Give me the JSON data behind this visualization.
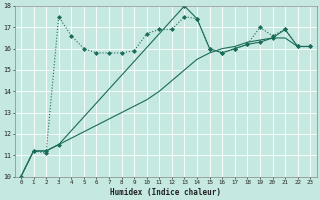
{
  "xlabel": "Humidex (Indice chaleur)",
  "bg_color": "#c5e8e0",
  "grid_color": "#a0d0c8",
  "line_color": "#1a6b5a",
  "xlim": [
    -0.5,
    23.5
  ],
  "ylim": [
    10,
    18
  ],
  "xtick_labels": [
    "0",
    "1",
    "2",
    "3",
    "4",
    "5",
    "6",
    "7",
    "8",
    "9",
    "10",
    "11",
    "12",
    "13",
    "14",
    "15",
    "16",
    "17",
    "18",
    "19",
    "20",
    "21",
    "22",
    "23"
  ],
  "ytick_labels": [
    "10",
    "11",
    "12",
    "13",
    "14",
    "15",
    "16",
    "17",
    "18"
  ],
  "line1_x": [
    0,
    1,
    2,
    3,
    4,
    5,
    6,
    7,
    8,
    9,
    10,
    11,
    12,
    13,
    14,
    15,
    16,
    17,
    18,
    19,
    20,
    21,
    22,
    23
  ],
  "line1_y": [
    10.0,
    11.2,
    11.1,
    17.5,
    16.6,
    16.0,
    15.8,
    15.8,
    15.8,
    15.9,
    16.7,
    16.9,
    16.9,
    17.5,
    17.4,
    16.0,
    15.8,
    16.0,
    16.2,
    17.0,
    16.6,
    16.9,
    16.1,
    16.1
  ],
  "line2_x": [
    0,
    1,
    2,
    3,
    4,
    5,
    6,
    7,
    8,
    9,
    10,
    11,
    12,
    13,
    14,
    15,
    16,
    17,
    18,
    19,
    20,
    21,
    22,
    23
  ],
  "line2_y": [
    10.0,
    11.2,
    11.2,
    11.5,
    11.8,
    12.1,
    12.4,
    12.7,
    13.0,
    13.3,
    13.6,
    14.0,
    14.5,
    15.0,
    15.5,
    15.8,
    16.0,
    16.1,
    16.3,
    16.4,
    16.5,
    16.5,
    16.1,
    16.1
  ],
  "line3_x": [
    0,
    1,
    2,
    3,
    13,
    14,
    15,
    16,
    17,
    18,
    19,
    20,
    21,
    22,
    23
  ],
  "line3_y": [
    10.0,
    11.2,
    11.2,
    11.5,
    18.0,
    17.4,
    16.0,
    15.8,
    16.0,
    16.2,
    16.3,
    16.5,
    16.9,
    16.1,
    16.1
  ],
  "line1_style": "dotted",
  "line2_style": "solid",
  "line3_style": "solid"
}
